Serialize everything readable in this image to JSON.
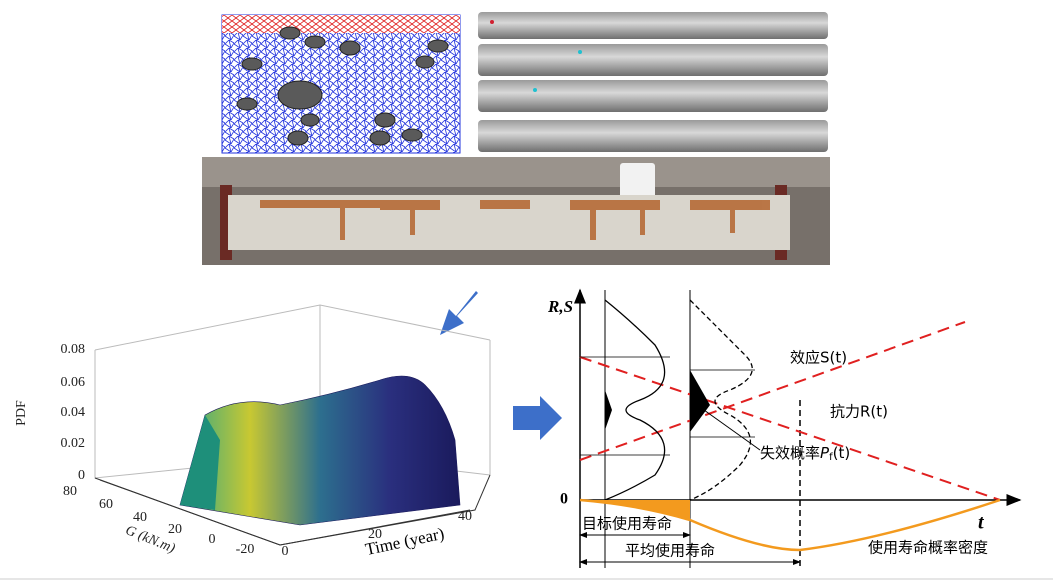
{
  "plot3d": {
    "z_label": "PDF",
    "z_ticks": [
      "0.08",
      "0.06",
      "0.04",
      "0.02",
      "0"
    ],
    "g_label": "G (kN.m)",
    "g_ticks": [
      "80",
      "60",
      "40",
      "20",
      "0",
      "-20"
    ],
    "time_label": "Time (year)",
    "time_ticks": [
      "0",
      "20",
      "40"
    ]
  },
  "diagram": {
    "axis_y": "R,S",
    "origin": "0",
    "axis_x": "t",
    "effect": "效应S(t)",
    "resistance": "抗力R(t)",
    "failure": {
      "text": "失效概率",
      "var": "P",
      "sub": "f",
      "arg": "(t)"
    },
    "target_life": "目标使用寿命",
    "mean_life": "平均使用寿命",
    "life_pdf": "使用寿命概率密度"
  }
}
